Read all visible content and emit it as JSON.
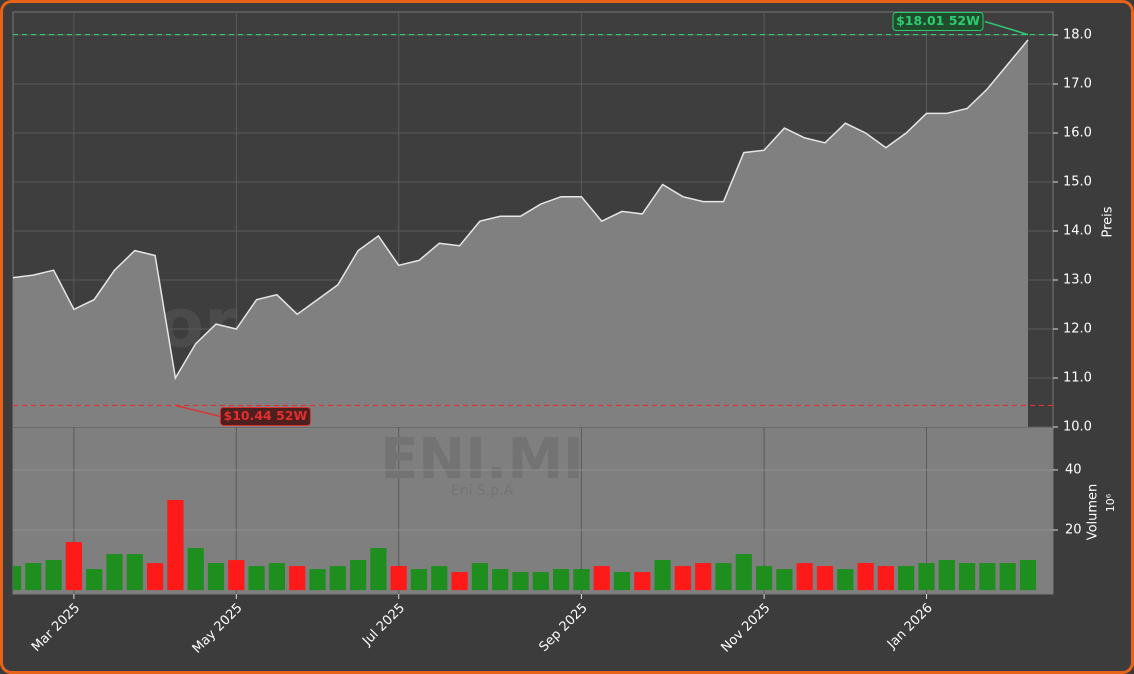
{
  "chart_data": [
    {
      "type": "area",
      "watermark": "forexsignale.trade",
      "symbol": "ENI.MI",
      "company": "Eni S.p.A",
      "ylabel": "Preis",
      "categories": [
        null,
        null,
        null,
        "Mar 2025",
        null,
        null,
        null,
        null,
        null,
        null,
        null,
        "May 2025",
        null,
        null,
        null,
        null,
        null,
        null,
        null,
        "Jul 2025",
        null,
        null,
        null,
        null,
        null,
        null,
        null,
        null,
        "Sep 2025",
        null,
        null,
        null,
        null,
        null,
        null,
        null,
        null,
        "Nov 2025",
        null,
        null,
        null,
        null,
        null,
        null,
        null,
        "Jan 2026",
        null,
        null,
        null,
        null,
        null
      ],
      "series": [
        {
          "name": "ENI.MI",
          "color": "#e6e6e6",
          "values": [
            13.05,
            13.1,
            13.2,
            12.4,
            12.6,
            13.2,
            13.6,
            13.5,
            11.0,
            11.7,
            12.1,
            12.0,
            12.6,
            12.7,
            12.3,
            12.6,
            12.9,
            13.6,
            13.9,
            13.3,
            13.4,
            13.75,
            13.7,
            14.2,
            14.3,
            14.3,
            14.55,
            14.7,
            14.7,
            14.2,
            14.4,
            14.35,
            14.95,
            14.7,
            14.6,
            14.6,
            15.6,
            15.65,
            16.1,
            15.9,
            15.8,
            16.2,
            16.0,
            15.7,
            16.0,
            16.4,
            16.4,
            16.5,
            16.9,
            17.4,
            17.9
          ]
        }
      ],
      "ylim": [
        10.0,
        18.47
      ],
      "yticks": [
        {
          "value": 10,
          "label": "10.0"
        },
        {
          "value": 11,
          "label": "11.0"
        },
        {
          "value": 12,
          "label": "12.0"
        },
        {
          "value": 13,
          "label": "13.0"
        },
        {
          "value": 14,
          "label": "14.0"
        },
        {
          "value": 15,
          "label": "15.0"
        },
        {
          "value": 16,
          "label": "16.0"
        },
        {
          "value": 17,
          "label": "17.0"
        },
        {
          "value": 18,
          "label": "18.0"
        }
      ],
      "grid": true,
      "annotations": [
        {
          "text": "$18.01 52W",
          "value": 18.01,
          "color": "#2ecc71",
          "index": 50
        },
        {
          "text": "$10.44 52W",
          "value": 10.44,
          "color": "#e03030",
          "index": 8
        }
      ]
    },
    {
      "type": "bar",
      "ylabel": "Volumen",
      "unit": "10⁶",
      "values": [
        8,
        9,
        10,
        16,
        7,
        12,
        12,
        9,
        30,
        14,
        9,
        10,
        8,
        9,
        8,
        7,
        8,
        10,
        14,
        8,
        7,
        8,
        6,
        9,
        7,
        6,
        6,
        7,
        7,
        8,
        6,
        6,
        10,
        8,
        9,
        9,
        12,
        8,
        7,
        9,
        8,
        7,
        9,
        8,
        8,
        9,
        10,
        9,
        9,
        9,
        10
      ],
      "up_color": "#1e8f1e",
      "down_color": "#ff1a1a",
      "ylim": [
        -1.3,
        54.3
      ],
      "yticks": [
        20,
        40
      ],
      "grid": true
    }
  ]
}
